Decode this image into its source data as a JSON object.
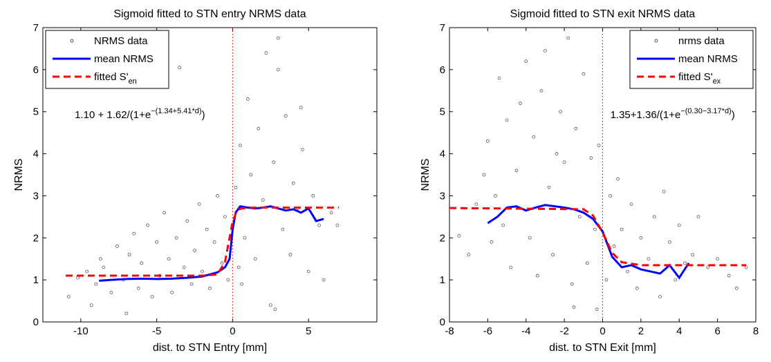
{
  "chart_data": [
    {
      "type": "scatter",
      "title": "Sigmoid fitted to STN entry NRMS data",
      "xlabel": "dist. to STN Entry [mm]",
      "ylabel": "NRMS",
      "xlim": [
        -12.5,
        9.5
      ],
      "ylim": [
        0,
        7
      ],
      "xticks": [
        -10,
        -5,
        0,
        5
      ],
      "yticks": [
        0,
        1,
        2,
        3,
        4,
        5,
        6,
        7
      ],
      "vline": 0,
      "legend": "upper-left",
      "annotation": {
        "text": "1.10 + 1.62/(1+e",
        "superscript": "−(1.34+5.41*d)",
        "suffix": ")"
      },
      "series": [
        {
          "name": "NRMS data",
          "color": "#555555",
          "style": "marker",
          "x": [
            -10.8,
            -10.2,
            -9.6,
            -9.3,
            -9,
            -8.7,
            -8.5,
            -8,
            -7.6,
            -7.2,
            -7,
            -6.8,
            -6.5,
            -6.2,
            -6,
            -5.6,
            -5.3,
            -5,
            -4.8,
            -4.5,
            -4.2,
            -4,
            -3.7,
            -3.5,
            -3.2,
            -3,
            -2.7,
            -2.5,
            -2.2,
            -2,
            -1.7,
            -1.5,
            -1.2,
            -1,
            -0.7,
            -0.5,
            -0.3,
            0.2,
            0.4,
            0.5,
            0.8,
            1,
            1.2,
            1.5,
            1.7,
            2,
            2.2,
            2.5,
            2.7,
            3,
            3.3,
            3.5,
            3.8,
            4,
            4.3,
            4.6,
            5,
            5.3,
            5.7,
            6,
            6.5,
            6.9,
            3,
            4.5,
            2.8,
            0.6
          ],
          "values": [
            0.6,
            1.05,
            1.2,
            0.4,
            0.9,
            1.5,
            1.3,
            0.7,
            1.8,
            1.0,
            0.2,
            1.6,
            2.1,
            0.8,
            1.4,
            2.3,
            0.6,
            1.9,
            1.1,
            2.6,
            1.5,
            0.7,
            2.0,
            6.05,
            1.3,
            2.4,
            0.9,
            1.7,
            2.8,
            1.2,
            2.2,
            0.8,
            1.9,
            3.0,
            1.4,
            2.5,
            1.0,
            3.2,
            1.3,
            4.2,
            2.0,
            5.3,
            3.5,
            1.5,
            4.6,
            2.9,
            6.4,
            0.4,
            3.8,
            6.0,
            2.2,
            4.9,
            1.6,
            3.3,
            2.7,
            4.1,
            1.2,
            3.0,
            2.3,
            1.0,
            2.6,
            2.3,
            6.75,
            5.1,
            0.3,
            0.9
          ]
        },
        {
          "name": "mean NRMS",
          "color": "#0000ff",
          "style": "solid",
          "x": [
            -8.8,
            -8,
            -7,
            -6,
            -5,
            -4,
            -3,
            -2,
            -1,
            -0.5,
            -0.2,
            0,
            0.2,
            0.5,
            1,
            1.5,
            2,
            2.5,
            3,
            3.5,
            4,
            4.5,
            5,
            5.5,
            6
          ],
          "values": [
            0.98,
            1.0,
            1.02,
            1.03,
            1.02,
            1.03,
            1.05,
            1.08,
            1.18,
            1.3,
            1.5,
            2.2,
            2.6,
            2.75,
            2.72,
            2.7,
            2.72,
            2.75,
            2.7,
            2.65,
            2.68,
            2.6,
            2.7,
            2.4,
            2.45
          ]
        },
        {
          "name": "fitted S'",
          "subscript": "en",
          "color": "#ff0000",
          "style": "dashed",
          "x": [
            -11,
            -2,
            -1,
            -0.5,
            -0.25,
            0,
            0.25,
            0.5,
            1,
            7
          ],
          "values": [
            1.1,
            1.1,
            1.13,
            1.43,
            1.91,
            2.38,
            2.62,
            2.69,
            2.72,
            2.72
          ]
        }
      ]
    },
    {
      "type": "scatter",
      "title": "Sigmoid fitted to STN exit NRMS data",
      "xlabel": "dist. to STN Exit [mm]",
      "ylabel": "NRMS",
      "xlim": [
        -8,
        8
      ],
      "ylim": [
        0,
        7
      ],
      "xticks": [
        -8,
        -6,
        -4,
        -2,
        0,
        2,
        4,
        6,
        8
      ],
      "yticks": [
        0,
        1,
        2,
        3,
        4,
        5,
        6,
        7
      ],
      "vline": 0,
      "legend": "upper-right",
      "annotation": {
        "text": "1.35+1.36/(1+e",
        "superscript": "−(0.30−3.17*d)",
        "suffix": ")"
      },
      "series": [
        {
          "name": "nrms data",
          "color": "#555555",
          "style": "marker",
          "x": [
            -7.5,
            -7,
            -6.6,
            -6.2,
            -6,
            -5.8,
            -5.6,
            -5.4,
            -5.2,
            -5,
            -4.8,
            -4.5,
            -4.3,
            -4,
            -3.8,
            -3.6,
            -3.4,
            -3.2,
            -3,
            -2.8,
            -2.6,
            -2.4,
            -2.2,
            -2,
            -1.8,
            -1.6,
            -1.4,
            -1.2,
            -1,
            -0.8,
            -0.6,
            -0.4,
            -0.2,
            0.2,
            0.4,
            0.6,
            0.8,
            1,
            1.3,
            1.5,
            1.8,
            2,
            2.4,
            2.7,
            3,
            3.2,
            3.5,
            3.8,
            4,
            4.3,
            4.7,
            5,
            5.5,
            6,
            6.6,
            7,
            7.5,
            -0.3,
            -1.5
          ],
          "values": [
            2.05,
            1.6,
            2.8,
            3.5,
            4.3,
            1.9,
            3.0,
            5.8,
            2.3,
            4.8,
            1.3,
            3.6,
            5.2,
            6.2,
            2.0,
            4.4,
            1.1,
            5.5,
            6.45,
            3.2,
            1.6,
            4.0,
            5.0,
            3.8,
            6.75,
            0.9,
            4.6,
            2.5,
            5.9,
            1.4,
            3.9,
            2.2,
            4.2,
            1.0,
            3.0,
            1.8,
            3.4,
            2.2,
            1.2,
            2.8,
            0.8,
            2.0,
            1.5,
            2.5,
            0.6,
            3.1,
            1.9,
            1.0,
            2.3,
            1.4,
            1.6,
            2.5,
            1.3,
            1.5,
            1.1,
            0.8,
            1.3,
            0.3,
            0.35
          ]
        },
        {
          "name": "mean NRMS",
          "color": "#0000ff",
          "style": "solid",
          "x": [
            -6,
            -5.5,
            -5,
            -4.5,
            -4,
            -3.5,
            -3,
            -2.5,
            -2,
            -1.5,
            -1,
            -0.5,
            0,
            0.5,
            1,
            1.5,
            2,
            2.5,
            3,
            3.5,
            4,
            4.5
          ],
          "values": [
            2.35,
            2.5,
            2.72,
            2.75,
            2.65,
            2.72,
            2.78,
            2.75,
            2.72,
            2.68,
            2.6,
            2.45,
            2.15,
            1.55,
            1.3,
            1.35,
            1.25,
            1.2,
            1.15,
            1.35,
            1.05,
            1.4
          ]
        },
        {
          "name": "fitted S'",
          "subscript": "ex",
          "color": "#ff0000",
          "style": "dashed",
          "x": [
            -8,
            -1,
            -0.5,
            0,
            0.5,
            1,
            2,
            7.5
          ],
          "values": [
            2.71,
            2.68,
            2.53,
            2.13,
            1.645,
            1.42,
            1.35,
            1.35
          ]
        }
      ]
    }
  ]
}
